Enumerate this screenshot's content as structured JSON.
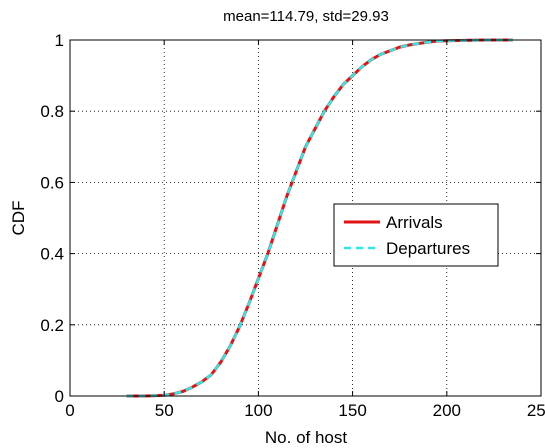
{
  "chart_data": {
    "type": "line",
    "title": "mean=114.79, std=29.93",
    "xlabel": "No. of host",
    "ylabel": "CDF",
    "xlim": [
      0,
      250
    ],
    "ylim": [
      0,
      1
    ],
    "xticks": [
      "0",
      "50",
      "100",
      "150",
      "200",
      "250"
    ],
    "yticks": [
      "0",
      "0.2",
      "0.4",
      "0.6",
      "0.8",
      "1"
    ],
    "grid": true,
    "legend_position": "center-right",
    "series": [
      {
        "name": "Arrivals",
        "color": "#e01414",
        "style": "solid",
        "x": [
          30,
          40,
          50,
          55,
          60,
          65,
          70,
          75,
          80,
          85,
          90,
          95,
          100,
          105,
          110,
          115,
          120,
          125,
          130,
          135,
          140,
          145,
          150,
          155,
          160,
          165,
          170,
          175,
          180,
          185,
          190,
          195,
          200,
          210,
          220,
          235
        ],
        "y": [
          0.0,
          0.0,
          0.002,
          0.006,
          0.013,
          0.025,
          0.04,
          0.06,
          0.095,
          0.14,
          0.195,
          0.26,
          0.33,
          0.4,
          0.48,
          0.56,
          0.63,
          0.7,
          0.75,
          0.8,
          0.84,
          0.875,
          0.9,
          0.925,
          0.945,
          0.96,
          0.97,
          0.98,
          0.986,
          0.99,
          0.994,
          0.997,
          0.998,
          0.999,
          1.0,
          1.0
        ]
      },
      {
        "name": "Departures",
        "color": "#33e6e6",
        "style": "dashed",
        "x": [
          30,
          40,
          50,
          55,
          60,
          65,
          70,
          75,
          80,
          85,
          90,
          95,
          100,
          105,
          110,
          115,
          120,
          125,
          130,
          135,
          140,
          145,
          150,
          155,
          160,
          165,
          170,
          175,
          180,
          185,
          190,
          195,
          200,
          210,
          220,
          235
        ],
        "y": [
          0.0,
          0.0,
          0.002,
          0.006,
          0.013,
          0.025,
          0.04,
          0.06,
          0.095,
          0.14,
          0.195,
          0.26,
          0.33,
          0.4,
          0.48,
          0.56,
          0.63,
          0.7,
          0.75,
          0.8,
          0.84,
          0.875,
          0.9,
          0.925,
          0.945,
          0.96,
          0.97,
          0.98,
          0.986,
          0.99,
          0.994,
          0.997,
          0.998,
          0.999,
          1.0,
          1.0
        ]
      }
    ]
  }
}
